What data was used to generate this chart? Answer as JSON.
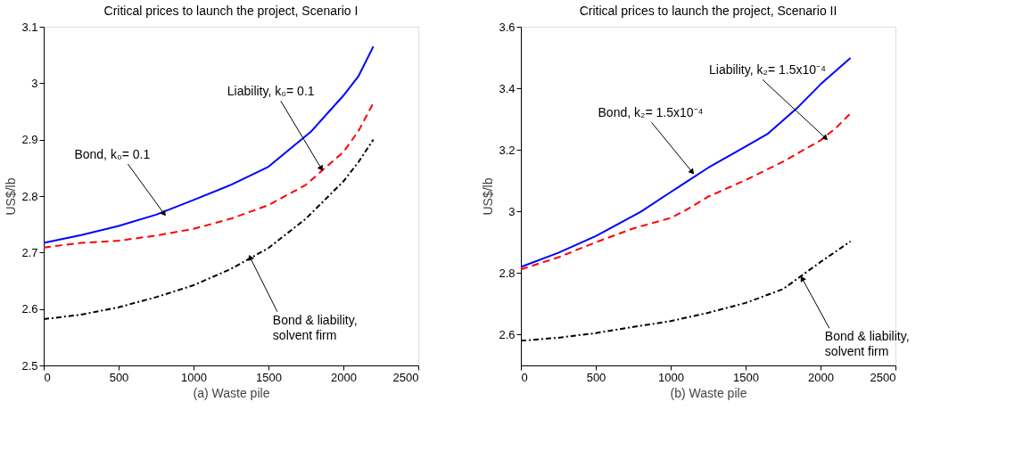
{
  "chart_data": [
    {
      "type": "line",
      "title": "Critical prices to launch the project, Scenario I",
      "xlabel": "(a) Waste pile",
      "ylabel": "US$/lb",
      "xlim": [
        0,
        2500
      ],
      "xticks": [
        0,
        500,
        1000,
        1500,
        2000,
        2500
      ],
      "ylim": [
        2.5,
        3.1
      ],
      "yticks": [
        2.5,
        2.6,
        2.7,
        2.8,
        2.9,
        3,
        3.1
      ],
      "grid": false,
      "series": [
        {
          "color": "#0000ff",
          "line_style": "solid",
          "x": [
            0,
            250,
            500,
            750,
            1000,
            1250,
            1500,
            1787,
            2000,
            2100,
            2200
          ],
          "values": [
            2.717,
            2.731,
            2.747,
            2.767,
            2.793,
            2.82,
            2.852,
            2.915,
            2.978,
            3.012,
            3.065
          ]
        },
        {
          "color": "#ff0000",
          "line_style": "dashed",
          "x": [
            0,
            250,
            500,
            750,
            1000,
            1250,
            1500,
            1750,
            1900,
            2000,
            2100,
            2200
          ],
          "values": [
            2.709,
            2.717,
            2.721,
            2.73,
            2.742,
            2.76,
            2.784,
            2.82,
            2.855,
            2.878,
            2.915,
            2.965
          ]
        },
        {
          "color": "#000000",
          "line_style": "dashdot",
          "x": [
            0,
            250,
            500,
            750,
            1000,
            1250,
            1500,
            1750,
            2000,
            2100,
            2200
          ],
          "values": [
            2.582,
            2.59,
            2.603,
            2.621,
            2.642,
            2.671,
            2.708,
            2.76,
            2.826,
            2.86,
            2.9
          ]
        }
      ],
      "annotations": [
        {
          "text": "Bond, k₀= 0.1",
          "x": 800,
          "y": 2.77
        },
        {
          "text": "Liability, k₀= 0.1",
          "x": 1850,
          "y": 2.85
        },
        {
          "text": "Bond & liability,\nsolvent firm",
          "x": 1380,
          "y": 2.69
        }
      ]
    },
    {
      "type": "line",
      "title": "Critical prices to launch the project, Scenario II",
      "xlabel": "(b) Waste pile",
      "ylabel": "US$/lb",
      "xlim": [
        0,
        2500
      ],
      "xticks": [
        0,
        500,
        1000,
        1500,
        2000,
        2500
      ],
      "ylim": [
        2.5,
        3.6
      ],
      "yticks": [
        2.6,
        2.8,
        3,
        3.2,
        3.4,
        3.6
      ],
      "grid": false,
      "series": [
        {
          "color": "#0000ff",
          "line_style": "solid",
          "x": [
            0,
            250,
            500,
            800,
            1000,
            1250,
            1500,
            1650,
            1850,
            2000,
            2200
          ],
          "values": [
            2.82,
            2.866,
            2.92,
            2.999,
            3.063,
            3.142,
            3.211,
            3.253,
            3.339,
            3.413,
            3.499
          ]
        },
        {
          "color": "#ff0000",
          "line_style": "dashed",
          "x": [
            0,
            250,
            500,
            750,
            1000,
            1100,
            1250,
            1500,
            1750,
            2000,
            2100,
            2200
          ],
          "values": [
            2.812,
            2.851,
            2.9,
            2.945,
            2.979,
            3.004,
            3.048,
            3.102,
            3.162,
            3.231,
            3.27,
            3.319
          ]
        },
        {
          "color": "#000000",
          "line_style": "dashdot",
          "x": [
            0,
            250,
            500,
            750,
            1000,
            1250,
            1500,
            1750,
            2000,
            2200
          ],
          "values": [
            2.58,
            2.59,
            2.605,
            2.625,
            2.644,
            2.671,
            2.703,
            2.748,
            2.836,
            2.903
          ]
        }
      ],
      "annotations": [
        {
          "text": "Bond, k₂= 1.5x10⁻⁴",
          "x": 1140,
          "y": 3.13
        },
        {
          "text": "Liability, k₂= 1.5x10⁻⁴",
          "x": 2030,
          "y": 3.24
        },
        {
          "text": "Bond & liability,\nsolvent firm",
          "x": 1880,
          "y": 2.78
        }
      ]
    }
  ]
}
